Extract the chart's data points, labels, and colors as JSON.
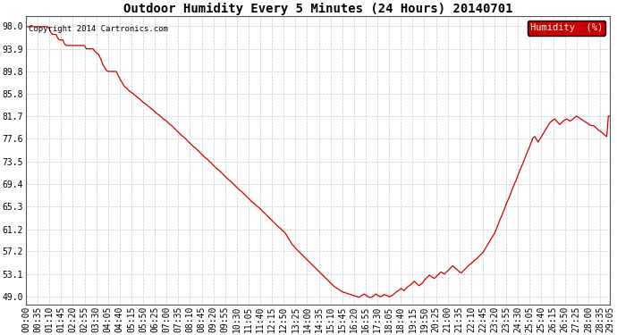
{
  "title": "Outdoor Humidity Every 5 Minutes (24 Hours) 20140701",
  "copyright_text": "Copyright 2014 Cartronics.com",
  "legend_text": "Humidity  (%)",
  "yticks": [
    49.0,
    53.1,
    57.2,
    61.2,
    65.3,
    69.4,
    73.5,
    77.6,
    81.7,
    85.8,
    89.8,
    93.9,
    98.0
  ],
  "ylim": [
    47.5,
    99.8
  ],
  "line_color": "#cc0000",
  "bg_color": "#ffffff",
  "grid_color": "#bbbbbb",
  "legend_bg": "#cc0000",
  "title_fontsize": 10,
  "tick_fontsize": 7,
  "humidity_data": [
    97.9,
    97.9,
    97.9,
    97.9,
    97.9,
    97.9,
    97.9,
    97.9,
    97.9,
    97.9,
    97.9,
    97.9,
    97.9,
    97.9,
    97.5,
    96.8,
    96.5,
    96.5,
    96.5,
    95.8,
    95.5,
    95.5,
    95.5,
    94.8,
    94.5,
    94.5,
    94.5,
    94.5,
    94.5,
    94.5,
    94.5,
    94.5,
    94.5,
    94.5,
    94.5,
    94.5,
    93.9,
    93.9,
    93.9,
    93.9,
    93.9,
    93.5,
    93.2,
    93.0,
    92.5,
    91.8,
    91.0,
    90.5,
    90.0,
    89.8,
    89.8,
    89.8,
    89.8,
    89.8,
    89.8,
    89.1,
    88.5,
    88.0,
    87.5,
    87.0,
    86.8,
    86.5,
    86.2,
    86.0,
    85.8,
    85.5,
    85.3,
    85.0,
    84.8,
    84.5,
    84.2,
    84.0,
    83.8,
    83.5,
    83.3,
    83.0,
    82.8,
    82.5,
    82.2,
    82.0,
    81.8,
    81.5,
    81.2,
    81.0,
    80.8,
    80.5,
    80.2,
    80.0,
    79.7,
    79.4,
    79.1,
    78.8,
    78.5,
    78.2,
    78.0,
    77.7,
    77.4,
    77.1,
    76.8,
    76.5,
    76.2,
    76.0,
    75.7,
    75.4,
    75.1,
    74.8,
    74.5,
    74.2,
    74.0,
    73.7,
    73.4,
    73.1,
    72.8,
    72.5,
    72.2,
    72.0,
    71.7,
    71.4,
    71.1,
    70.8,
    70.5,
    70.2,
    70.0,
    69.7,
    69.4,
    69.1,
    68.8,
    68.5,
    68.2,
    68.0,
    67.7,
    67.4,
    67.1,
    66.8,
    66.5,
    66.2,
    66.0,
    65.7,
    65.4,
    65.2,
    64.9,
    64.6,
    64.3,
    64.0,
    63.7,
    63.4,
    63.1,
    62.8,
    62.5,
    62.2,
    61.9,
    61.6,
    61.4,
    61.1,
    60.8,
    60.5,
    60.0,
    59.5,
    59.0,
    58.5,
    58.2,
    57.8,
    57.5,
    57.2,
    56.9,
    56.6,
    56.3,
    56.0,
    55.7,
    55.4,
    55.1,
    54.8,
    54.5,
    54.2,
    53.9,
    53.6,
    53.3,
    53.0,
    52.7,
    52.4,
    52.1,
    51.8,
    51.5,
    51.2,
    50.9,
    50.7,
    50.5,
    50.3,
    50.1,
    49.9,
    49.8,
    49.7,
    49.6,
    49.5,
    49.4,
    49.3,
    49.2,
    49.1,
    49.0,
    48.9,
    49.1,
    49.3,
    49.5,
    49.3,
    49.1,
    48.9,
    48.9,
    49.0,
    49.2,
    49.5,
    49.3,
    49.1,
    49.0,
    49.2,
    49.4,
    49.3,
    49.2,
    49.0,
    49.1,
    49.3,
    49.5,
    49.8,
    50.0,
    50.2,
    50.5,
    50.3,
    50.1,
    50.5,
    50.8,
    51.0,
    51.2,
    51.5,
    51.8,
    51.5,
    51.2,
    51.0,
    51.3,
    51.5,
    52.0,
    52.3,
    52.6,
    52.9,
    52.7,
    52.5,
    52.3,
    52.6,
    52.9,
    53.2,
    53.5,
    53.3,
    53.1,
    53.4,
    53.7,
    54.0,
    54.3,
    54.6,
    54.3,
    54.1,
    53.8,
    53.5,
    53.3,
    53.6,
    53.9,
    54.2,
    54.5,
    54.8,
    55.0,
    55.3,
    55.6,
    55.8,
    56.1,
    56.4,
    56.7,
    57.0,
    57.5,
    58.0,
    58.5,
    59.0,
    59.5,
    60.0,
    60.5,
    61.2,
    62.0,
    62.8,
    63.5,
    64.2,
    65.0,
    65.8,
    66.5,
    67.2,
    68.0,
    68.8,
    69.5,
    70.2,
    71.0,
    71.8,
    72.5,
    73.2,
    74.0,
    74.8,
    75.5,
    76.2,
    77.0,
    77.8,
    78.0,
    77.5,
    77.0,
    77.5,
    78.0,
    78.5,
    79.0,
    79.5,
    80.0,
    80.5,
    80.8,
    81.0,
    81.2,
    80.8,
    80.5,
    80.2,
    80.5,
    80.8,
    81.0,
    81.2,
    81.0,
    80.8,
    81.0,
    81.2,
    81.5,
    81.7,
    81.5,
    81.3,
    81.1,
    80.9,
    80.7,
    80.5,
    80.3,
    80.1,
    80.0,
    80.0,
    79.8,
    79.5,
    79.2,
    79.0,
    78.8,
    78.5,
    78.2,
    78.0,
    81.7,
    81.7
  ]
}
